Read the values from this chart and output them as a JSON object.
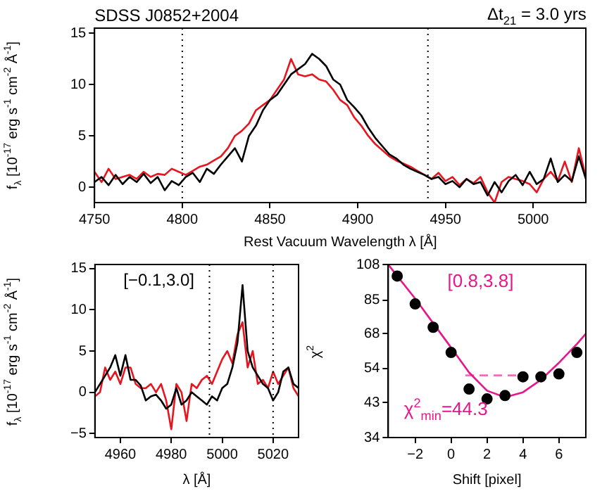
{
  "chart_data": [
    {
      "type": "line",
      "title": "SDSS J0852+2004",
      "xlabel": "Rest Vacuum Wavelength λ [Å]",
      "ylabel": "f$_{λ}$ [10$^{-17}$ erg s$^{-1}$ cm$^{-2}$ Å$^{-1}$]",
      "annotations": [
        "Δt$_{21}$ = 3.0 yrs"
      ],
      "xlim": [
        4750,
        5030
      ],
      "xticks": [
        4750,
        4800,
        4850,
        4900,
        4950,
        5000
      ],
      "ylim": [
        -1.5,
        15.5
      ],
      "yticks": [
        0,
        5,
        10,
        15
      ],
      "x": [
        4750,
        4754,
        4758,
        4762,
        4766,
        4770,
        4774,
        4778,
        4782,
        4786,
        4790,
        4794,
        4798,
        4802,
        4806,
        4810,
        4814,
        4818,
        4822,
        4826,
        4830,
        4834,
        4838,
        4842,
        4846,
        4850,
        4854,
        4858,
        4862,
        4866,
        4870,
        4874,
        4878,
        4882,
        4886,
        4890,
        4894,
        4898,
        4902,
        4906,
        4910,
        4914,
        4918,
        4922,
        4926,
        4930,
        4934,
        4938,
        4942,
        4946,
        4950,
        4954,
        4958,
        4962,
        4966,
        4970,
        4974,
        4978,
        4982,
        4986,
        4990,
        4994,
        4998,
        5002,
        5006,
        5010,
        5014,
        5018,
        5022,
        5026,
        5030
      ],
      "series": [
        {
          "color": "#000000",
          "values": [
            0.5,
            1.0,
            0.2,
            1.2,
            0.3,
            1.0,
            0.5,
            1.3,
            0.4,
            1.0,
            -0.3,
            0.6,
            0.2,
            1.0,
            1.4,
            0.5,
            1.8,
            1.3,
            2.2,
            3.0,
            3.8,
            2.5,
            5.0,
            6.0,
            7.5,
            8.5,
            9.0,
            10.0,
            11.0,
            11.5,
            12.0,
            13.0,
            12.5,
            11.8,
            10.5,
            10.0,
            8.5,
            7.8,
            7.0,
            5.8,
            4.8,
            4.0,
            3.2,
            2.8,
            2.2,
            1.8,
            1.5,
            1.2,
            0.8,
            1.0,
            0.3,
            0.6,
            0.0,
            0.8,
            0.3,
            0.5,
            -0.8,
            0.5,
            -0.5,
            0.6,
            1.2,
            0.2,
            1.5,
            0.3,
            0.8,
            2.8,
            0.5,
            1.2,
            0.6,
            3.0,
            0.8
          ]
        },
        {
          "color": "#e8141e",
          "values": [
            1.5,
            0.5,
            1.8,
            0.8,
            1.0,
            1.2,
            0.8,
            1.5,
            1.0,
            1.3,
            1.2,
            1.8,
            1.5,
            1.2,
            1.6,
            2.0,
            2.2,
            2.6,
            3.0,
            3.8,
            5.0,
            5.5,
            6.2,
            7.5,
            8.0,
            8.5,
            9.5,
            10.5,
            12.5,
            11.0,
            10.8,
            11.0,
            10.5,
            10.3,
            9.5,
            8.5,
            8.0,
            6.8,
            6.0,
            5.0,
            4.2,
            3.6,
            3.0,
            2.6,
            2.3,
            2.0,
            1.6,
            1.2,
            0.8,
            1.4,
            0.6,
            1.0,
            0.2,
            0.8,
            0.4,
            1.0,
            -0.5,
            -1.5,
            0.5,
            1.0,
            0.8,
            0.6,
            0.3,
            -0.5,
            0.8,
            1.5,
            0.6,
            2.5,
            0.5,
            3.8,
            1.0
          ]
        }
      ],
      "ref_lines": [
        {
          "axis": "x",
          "value": 4800,
          "color": "#000000",
          "line_style": "dotted"
        },
        {
          "axis": "x",
          "value": 4940,
          "color": "#000000",
          "line_style": "dotted"
        }
      ]
    },
    {
      "type": "line",
      "xlabel": "λ [Å]",
      "ylabel": "f$_{λ}$ [10$^{-17}$ erg s$^{-1}$ cm$^{-2}$ Å$^{-1}$]",
      "annotations": [
        "[−0.1,3.0]"
      ],
      "xlim": [
        4950,
        5030
      ],
      "xticks": [
        4960,
        4980,
        5000,
        5020
      ],
      "ylim": [
        -5.5,
        15.5
      ],
      "yticks": [
        -5,
        0,
        5,
        10,
        15
      ],
      "x": [
        4950,
        4952,
        4954,
        4956,
        4958,
        4960,
        4962,
        4964,
        4966,
        4968,
        4970,
        4972,
        4974,
        4976,
        4978,
        4980,
        4982,
        4984,
        4986,
        4988,
        4990,
        4992,
        4994,
        4996,
        4998,
        5000,
        5002,
        5004,
        5006,
        5008,
        5010,
        5012,
        5014,
        5016,
        5018,
        5020,
        5022,
        5024,
        5026,
        5028,
        5030
      ],
      "series": [
        {
          "color": "#000000",
          "values": [
            0,
            1,
            2,
            3,
            4.5,
            2,
            4.5,
            1.5,
            1.5,
            0.8,
            -1,
            -0.5,
            -0.3,
            -1,
            -2,
            -1.5,
            0.5,
            -1.5,
            -1,
            0,
            -0.5,
            -1,
            -1.5,
            -0.5,
            -1,
            0.5,
            1,
            3,
            6,
            13,
            5,
            3,
            2,
            1,
            0.5,
            -1,
            0,
            2.5,
            3,
            1,
            0.5
          ]
        },
        {
          "color": "#e8141e",
          "values": [
            -0.5,
            0,
            3,
            1.5,
            2.5,
            1,
            3,
            3,
            1,
            0.5,
            0.5,
            1,
            0,
            1,
            -1,
            -4.5,
            1,
            0,
            -3.5,
            1,
            0.5,
            1.5,
            2,
            1,
            2.5,
            4,
            5,
            3.5,
            7,
            8.5,
            3,
            5,
            1,
            1.5,
            0.5,
            2.5,
            1,
            2,
            3,
            0.5,
            -0.5
          ]
        }
      ],
      "ref_lines": [
        {
          "axis": "x",
          "value": 4995,
          "color": "#000000",
          "line_style": "dotted"
        },
        {
          "axis": "x",
          "value": 5020,
          "color": "#000000",
          "line_style": "dotted"
        }
      ]
    },
    {
      "type": "scatter",
      "xlabel": "Shift [pixel]",
      "ylabel": "χ$^{2}$",
      "annotations": [
        "[0.8,3.8]",
        "χ$^{2}$$_{min}$=44.3"
      ],
      "log": "y",
      "xlim": [
        -3.5,
        7.5
      ],
      "xticks": [
        -2,
        0,
        2,
        4,
        6
      ],
      "ylim": [
        34,
        108
      ],
      "yticks": [
        34,
        43,
        54,
        68,
        85,
        108
      ],
      "series": [
        {
          "color": "#000000",
          "marker": "circle",
          "x": [
            -3,
            -2,
            -1,
            0,
            1,
            2,
            3,
            4,
            5,
            6,
            7
          ],
          "values": [
            100,
            83,
            71,
            60,
            47,
            44,
            45,
            51,
            51,
            52,
            60
          ]
        },
        {
          "type": "line",
          "color": "#e8168c",
          "x": [
            -3.5,
            -3,
            -2,
            -1,
            0,
            1,
            2,
            3,
            4,
            5,
            6,
            7,
            7.5
          ],
          "values": [
            108,
            100,
            86,
            73,
            62,
            52.5,
            46.5,
            44.5,
            46,
            50,
            56,
            63.5,
            68
          ]
        },
        {
          "type": "line",
          "color": "#f06eb8",
          "line_style": "dashed",
          "x": [
            0.8,
            3.8
          ],
          "values": [
            51.5,
            51.5
          ]
        }
      ]
    }
  ]
}
